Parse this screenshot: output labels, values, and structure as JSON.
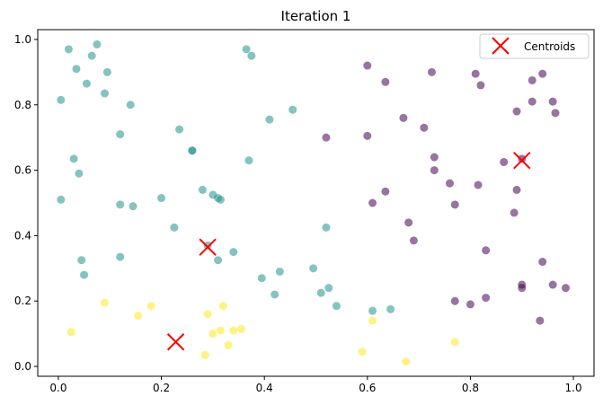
{
  "chart_data": {
    "type": "scatter",
    "title": "Iteration 1",
    "xlabel": "",
    "ylabel": "",
    "xlim": [
      -0.04,
      1.04
    ],
    "ylim": [
      -0.03,
      1.03
    ],
    "xticks": [
      0.0,
      0.2,
      0.4,
      0.6,
      0.8,
      1.0
    ],
    "yticks": [
      0.0,
      0.2,
      0.4,
      0.6,
      0.8,
      1.0
    ],
    "tick_labels_x": [
      "0.0",
      "0.2",
      "0.4",
      "0.6",
      "0.8",
      "1.0"
    ],
    "tick_labels_y": [
      "0.0",
      "0.2",
      "0.4",
      "0.6",
      "0.8",
      "1.0"
    ],
    "grid": false,
    "legend_position": "top-right",
    "legend": [
      {
        "label": "Centroids",
        "marker": "x",
        "color": "#ff0000"
      }
    ],
    "colors": {
      "cluster_0": "#440154",
      "cluster_1": "#21918c",
      "cluster_2": "#fde725",
      "centroid": "#ff0000"
    },
    "series": [
      {
        "cluster": 0,
        "color": "#440154",
        "points": [
          [
            0.6,
            0.92
          ],
          [
            0.635,
            0.87
          ],
          [
            0.725,
            0.9
          ],
          [
            0.81,
            0.895
          ],
          [
            0.82,
            0.86
          ],
          [
            0.92,
            0.875
          ],
          [
            0.94,
            0.895
          ],
          [
            0.92,
            0.81
          ],
          [
            0.96,
            0.81
          ],
          [
            0.965,
            0.775
          ],
          [
            0.89,
            0.78
          ],
          [
            0.67,
            0.76
          ],
          [
            0.71,
            0.73
          ],
          [
            0.52,
            0.7
          ],
          [
            0.6,
            0.705
          ],
          [
            0.73,
            0.64
          ],
          [
            0.73,
            0.6
          ],
          [
            0.76,
            0.56
          ],
          [
            0.815,
            0.555
          ],
          [
            0.865,
            0.625
          ],
          [
            0.9,
            0.635
          ],
          [
            0.89,
            0.54
          ],
          [
            0.885,
            0.47
          ],
          [
            0.635,
            0.535
          ],
          [
            0.61,
            0.5
          ],
          [
            0.77,
            0.495
          ],
          [
            0.68,
            0.44
          ],
          [
            0.69,
            0.385
          ],
          [
            0.83,
            0.355
          ],
          [
            0.94,
            0.32
          ],
          [
            0.9,
            0.25
          ],
          [
            0.9,
            0.24
          ],
          [
            0.96,
            0.25
          ],
          [
            0.985,
            0.24
          ],
          [
            0.83,
            0.21
          ],
          [
            0.77,
            0.2
          ],
          [
            0.8,
            0.19
          ],
          [
            0.935,
            0.14
          ]
        ]
      },
      {
        "cluster": 1,
        "color": "#21918c",
        "points": [
          [
            0.02,
            0.97
          ],
          [
            0.075,
            0.985
          ],
          [
            0.035,
            0.91
          ],
          [
            0.065,
            0.95
          ],
          [
            0.095,
            0.9
          ],
          [
            0.055,
            0.865
          ],
          [
            0.09,
            0.835
          ],
          [
            0.005,
            0.815
          ],
          [
            0.14,
            0.8
          ],
          [
            0.12,
            0.71
          ],
          [
            0.365,
            0.97
          ],
          [
            0.375,
            0.95
          ],
          [
            0.41,
            0.755
          ],
          [
            0.455,
            0.785
          ],
          [
            0.235,
            0.725
          ],
          [
            0.26,
            0.66
          ],
          [
            0.26,
            0.66
          ],
          [
            0.03,
            0.635
          ],
          [
            0.04,
            0.59
          ],
          [
            0.37,
            0.63
          ],
          [
            0.28,
            0.54
          ],
          [
            0.3,
            0.525
          ],
          [
            0.31,
            0.515
          ],
          [
            0.315,
            0.51
          ],
          [
            0.2,
            0.515
          ],
          [
            0.005,
            0.51
          ],
          [
            0.12,
            0.495
          ],
          [
            0.145,
            0.49
          ],
          [
            0.225,
            0.425
          ],
          [
            0.52,
            0.425
          ],
          [
            0.29,
            0.37
          ],
          [
            0.34,
            0.35
          ],
          [
            0.045,
            0.325
          ],
          [
            0.12,
            0.335
          ],
          [
            0.31,
            0.325
          ],
          [
            0.05,
            0.28
          ],
          [
            0.395,
            0.27
          ],
          [
            0.43,
            0.29
          ],
          [
            0.495,
            0.3
          ],
          [
            0.42,
            0.22
          ],
          [
            0.51,
            0.225
          ],
          [
            0.525,
            0.24
          ],
          [
            0.54,
            0.185
          ],
          [
            0.61,
            0.17
          ],
          [
            0.645,
            0.175
          ]
        ]
      },
      {
        "cluster": 2,
        "color": "#fde725",
        "points": [
          [
            0.09,
            0.195
          ],
          [
            0.18,
            0.185
          ],
          [
            0.155,
            0.155
          ],
          [
            0.025,
            0.105
          ],
          [
            0.29,
            0.16
          ],
          [
            0.32,
            0.185
          ],
          [
            0.3,
            0.1
          ],
          [
            0.315,
            0.11
          ],
          [
            0.34,
            0.11
          ],
          [
            0.355,
            0.115
          ],
          [
            0.33,
            0.065
          ],
          [
            0.285,
            0.035
          ],
          [
            0.59,
            0.045
          ],
          [
            0.61,
            0.14
          ],
          [
            0.77,
            0.075
          ],
          [
            0.675,
            0.015
          ]
        ]
      }
    ],
    "centroids": [
      [
        0.29,
        0.365
      ],
      [
        0.9,
        0.63
      ],
      [
        0.228,
        0.075
      ]
    ]
  }
}
